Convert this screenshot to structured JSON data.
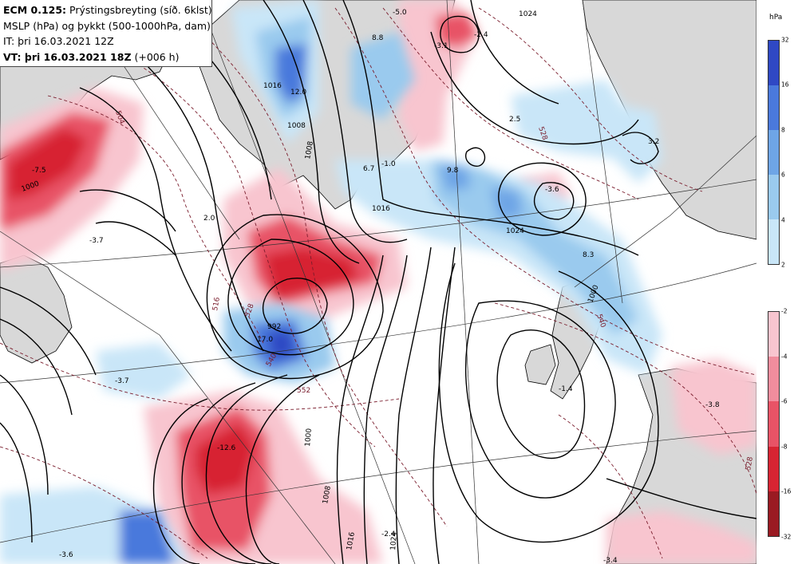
{
  "header": {
    "line1_bold": "ECM 0.125:",
    "line1_rest": "Prýstingsbreyting (síð. 6klst)",
    "line2": "MSLP (hPa) og þykkt (500-1000hPa, dam)",
    "line3": "IT: þri 16.03.2021 12Z",
    "line4_bold": "VT: þri 16.03.2021 18Z",
    "line4_rest": "(+006 h)"
  },
  "legend": {
    "unit": "hPa",
    "falling_colors": [
      "#c9e6f8",
      "#9acaee",
      "#6ea5e6",
      "#4a79dc",
      "#2f48c4"
    ],
    "falling_ticks": [
      "32",
      "16",
      "8",
      "6",
      "4",
      "2"
    ],
    "rising_colors": [
      "#f8c5cf",
      "#f08d9d",
      "#e85366",
      "#d72432",
      "#9a1a22"
    ],
    "rising_ticks": [
      "-2",
      "-4",
      "-6",
      "-8",
      "-16",
      "-32"
    ]
  },
  "colors": {
    "sea": "#ffffff",
    "land": "#d8d8d8",
    "isobar": "#000000",
    "thickness": "#7a1c2c",
    "graticule": "#333333"
  },
  "map": {
    "isobar_labels": [
      "1024",
      "1016",
      "1008",
      "1000",
      "992",
      "1016",
      "1008",
      "1000",
      "1024",
      "1016",
      "1008",
      "1000",
      "1024"
    ],
    "thickness_labels": [
      "504",
      "516",
      "528",
      "540",
      "552",
      "528",
      "540",
      "528"
    ],
    "change_labels": [
      "-5.0",
      "-2.4",
      "-3.1",
      "8.8",
      "12.0",
      "2.5",
      "3.2",
      "-3.7",
      "2.0",
      "-3.6",
      "9.8",
      "6.7",
      "-1.0",
      "8.3",
      "17.0",
      "-3.7",
      "-1.4",
      "-3.8",
      "-12.6",
      "-2.4",
      "-3.6",
      "-3.4",
      "-7.5"
    ]
  }
}
